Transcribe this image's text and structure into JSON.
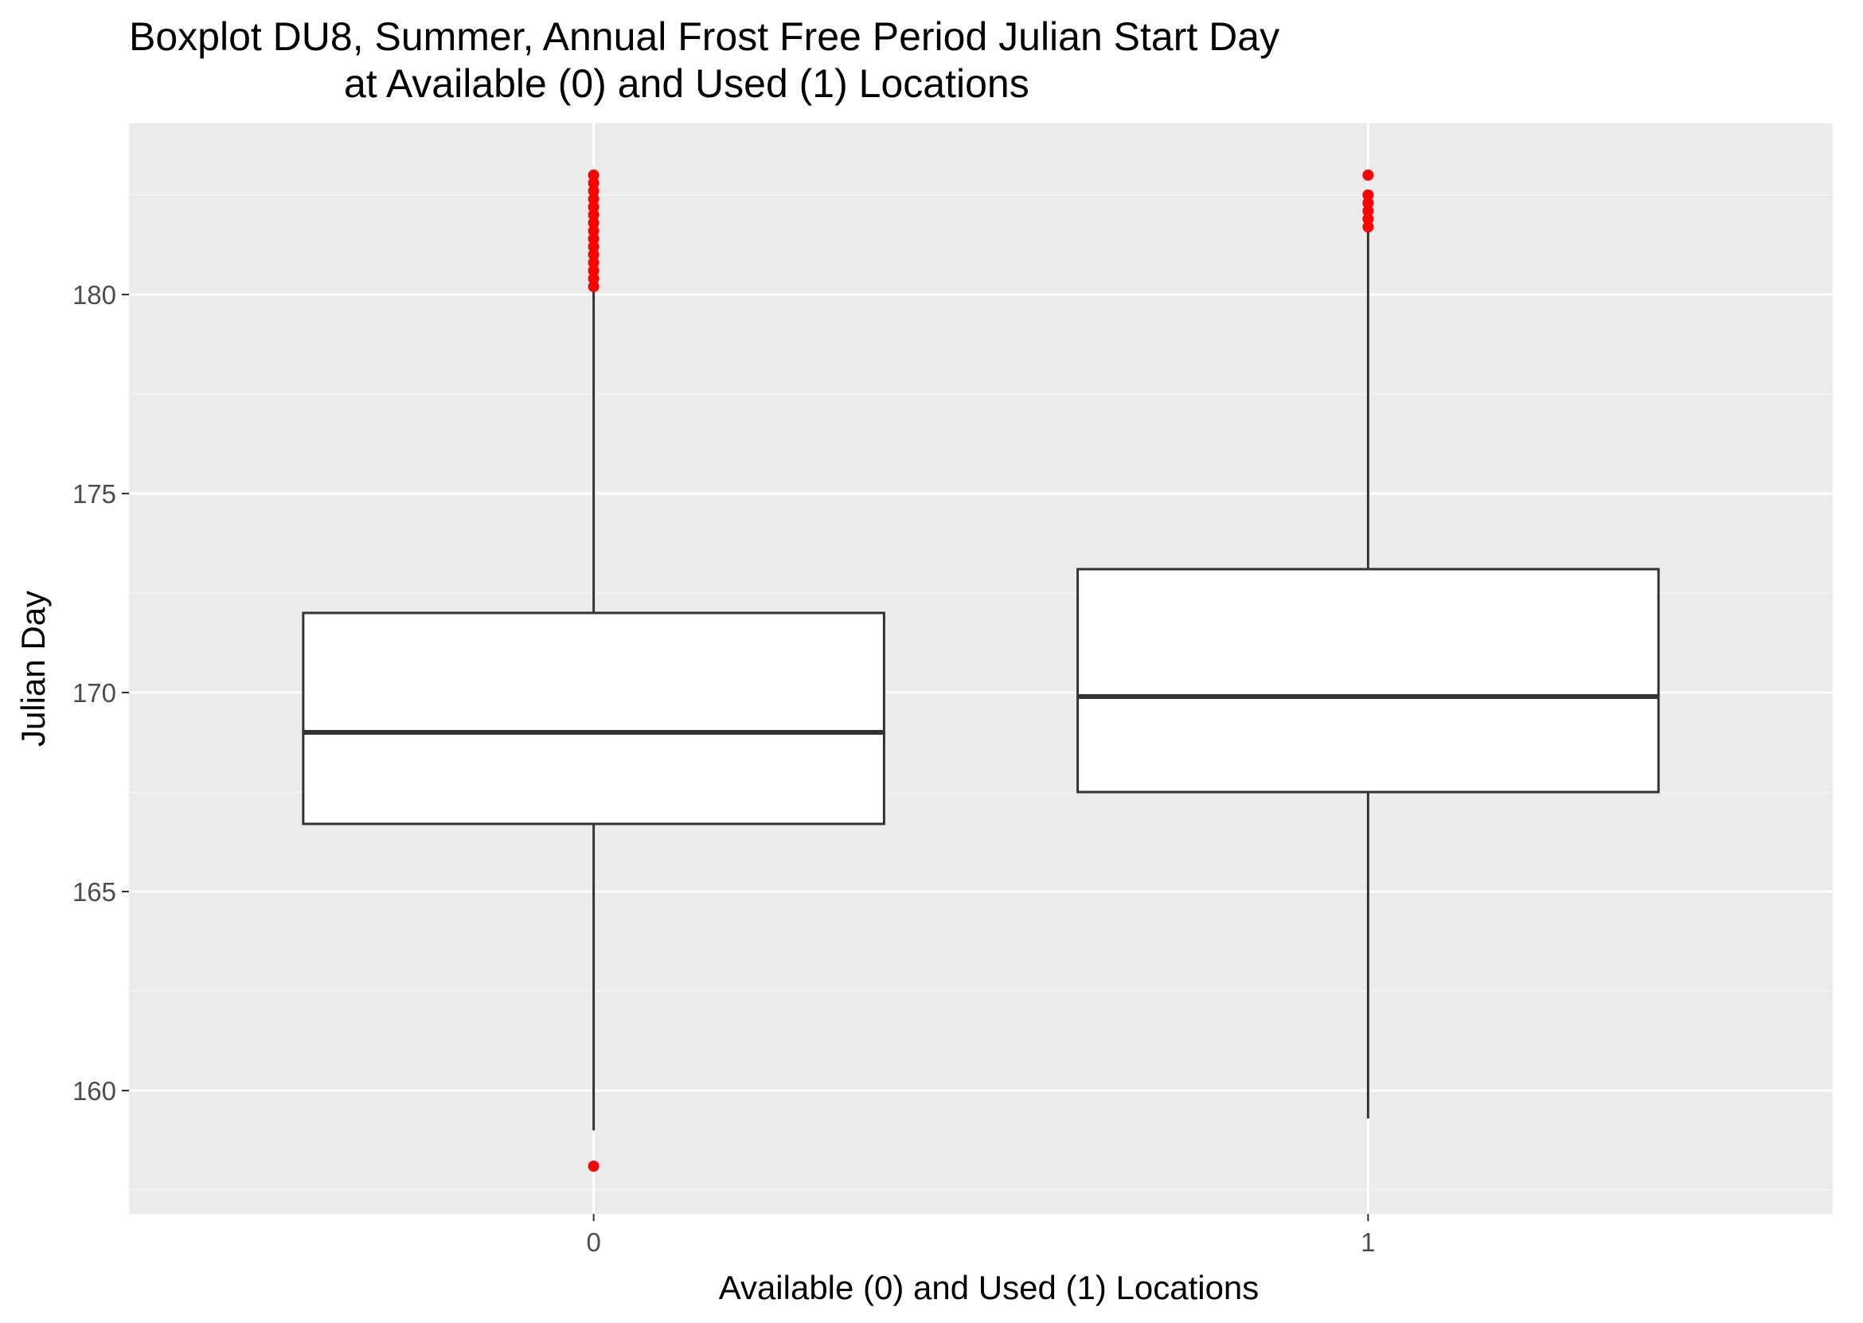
{
  "chart_data": {
    "type": "boxplot",
    "title": "Boxplot DU8, Summer, Annual Frost Free Period Julian Start Day",
    "subtitle": "at Available (0) and Used (1) Locations",
    "xlabel": "Available (0) and Used (1) Locations",
    "ylabel": "Julian Day",
    "categories": [
      "0",
      "1"
    ],
    "ylim": [
      156.9,
      184.3
    ],
    "y_ticks": [
      160,
      165,
      170,
      175,
      180
    ],
    "grid": true,
    "legend": "none",
    "boxes": [
      {
        "category": "0",
        "whisker_low": 159.0,
        "q1": 166.7,
        "median": 169.0,
        "q3": 172.0,
        "whisker_high": 180.1,
        "outliers": [
          158.1,
          180.2,
          180.4,
          180.6,
          180.8,
          181.0,
          181.2,
          181.4,
          181.6,
          181.8,
          182.0,
          182.2,
          182.4,
          182.6,
          182.8,
          183.0
        ]
      },
      {
        "category": "1",
        "whisker_low": 159.3,
        "q1": 167.5,
        "median": 169.9,
        "q3": 173.1,
        "whisker_high": 181.6,
        "outliers": [
          181.7,
          181.9,
          182.1,
          182.3,
          182.5,
          183.0
        ]
      }
    ],
    "colors": {
      "panel_background": "#ebebeb",
      "grid_major": "#ffffff",
      "grid_minor": "#f5f5f5",
      "box_fill": "#ffffff",
      "box_stroke": "#333333",
      "outlier": "#ff0000",
      "tick_text": "#4d4d4d",
      "text": "#000000"
    }
  }
}
